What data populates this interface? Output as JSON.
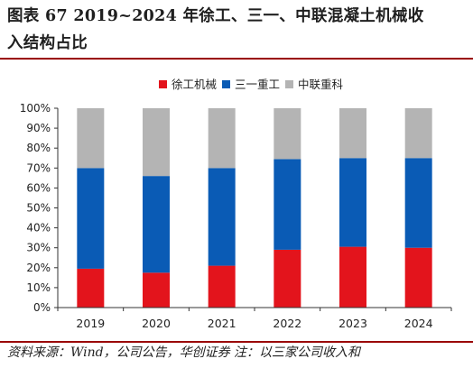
{
  "title": {
    "line1": "图表 67  2019~2024 年徐工、三一、中联混凝土机械收",
    "line2": "入结构占比"
  },
  "source": "资料来源：Wind，公司公告，华创证券 注：以三家公司收入和",
  "colors": {
    "xugong": "#e3141c",
    "sany": "#0a5bb5",
    "zoomlion": "#b4b4b4",
    "rule": "#9a0000"
  },
  "chart_data": {
    "type": "bar",
    "stacked": true,
    "categories": [
      "2019",
      "2020",
      "2021",
      "2022",
      "2023",
      "2024"
    ],
    "series": [
      {
        "name": "徐工机械",
        "color": "#e3141c",
        "values": [
          19.5,
          17.5,
          21,
          29,
          30.5,
          30
        ]
      },
      {
        "name": "三一重工",
        "color": "#0a5bb5",
        "values": [
          50.5,
          48.5,
          49,
          45.5,
          44.5,
          45
        ]
      },
      {
        "name": "中联重科",
        "color": "#b4b4b4",
        "values": [
          30,
          34,
          30,
          25.5,
          25,
          25
        ]
      }
    ],
    "yticks": [
      "0%",
      "10%",
      "20%",
      "30%",
      "40%",
      "50%",
      "60%",
      "70%",
      "80%",
      "90%",
      "100%"
    ],
    "ylim": [
      0,
      100
    ],
    "legend": "top-center",
    "grid": false
  }
}
